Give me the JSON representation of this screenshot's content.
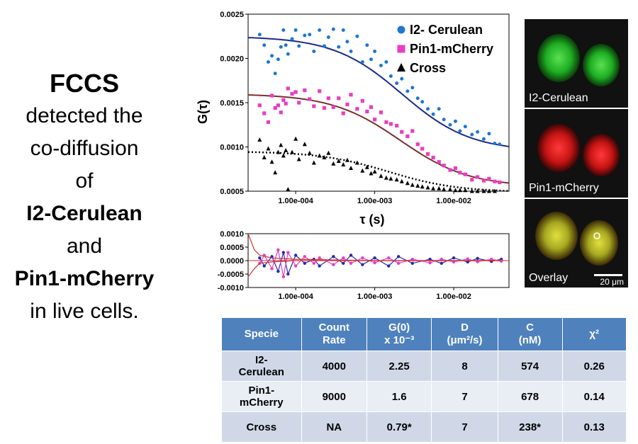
{
  "left_text": {
    "title": "FCCS",
    "line1": "detected the",
    "line2": "co-diffusion",
    "line3": "of",
    "protein1": "I2-Cerulean",
    "line4": "and",
    "protein2": "Pin1-mCherry",
    "line5": "in live cells."
  },
  "chart_data": [
    {
      "type": "scatter",
      "title": "",
      "xlabel": "τ (s)",
      "ylabel": "G(τ)",
      "xscale": "log",
      "xlim": [
        2.5e-05,
        0.05
      ],
      "ylim": [
        0.0005,
        0.0025
      ],
      "yticks": [
        "0.0005",
        "0.0010",
        "0.0015",
        "0.0020",
        "0.0025"
      ],
      "xticks": [
        "1.00e-004",
        "1.00e-003",
        "1.00e-002"
      ],
      "legend": "top-right",
      "series": [
        {
          "name": "I2- Cerulean",
          "marker": "circle",
          "color": "#1f77d0",
          "points": [
            [
              3.5e-05,
              0.00227
            ],
            [
              4e-05,
              0.00215
            ],
            [
              4.5e-05,
              0.00196
            ],
            [
              5e-05,
              0.00203
            ],
            [
              5.5e-05,
              0.00183
            ],
            [
              6e-05,
              0.00199
            ],
            [
              6.5e-05,
              0.00213
            ],
            [
              7e-05,
              0.00232
            ],
            [
              7.5e-05,
              0.00215
            ],
            [
              8e-05,
              0.00205
            ],
            [
              9e-05,
              0.00222
            ],
            [
              0.0001,
              0.00232
            ],
            [
              0.00011,
              0.00214
            ],
            [
              0.00013,
              0.00226
            ],
            [
              0.00015,
              0.00227
            ],
            [
              0.00017,
              0.00208
            ],
            [
              0.0002,
              0.00232
            ],
            [
              0.00023,
              0.00214
            ],
            [
              0.00026,
              0.00224
            ],
            [
              0.0003,
              0.00233
            ],
            [
              0.00035,
              0.00213
            ],
            [
              0.0004,
              0.00232
            ],
            [
              0.00045,
              0.00219
            ],
            [
              0.0005,
              0.00208
            ],
            [
              0.0006,
              0.00225
            ],
            [
              0.0007,
              0.00196
            ],
            [
              0.0008,
              0.00215
            ],
            [
              0.0009,
              0.00199
            ],
            [
              0.001,
              0.00208
            ],
            [
              0.0012,
              0.00192
            ],
            [
              0.0014,
              0.00196
            ],
            [
              0.0016,
              0.0018
            ],
            [
              0.0019,
              0.00172
            ],
            [
              0.0022,
              0.00177
            ],
            [
              0.0026,
              0.00163
            ],
            [
              0.003,
              0.00167
            ],
            [
              0.0035,
              0.00155
            ],
            [
              0.004,
              0.00151
            ],
            [
              0.0047,
              0.00143
            ],
            [
              0.0055,
              0.00137
            ],
            [
              0.0065,
              0.00143
            ],
            [
              0.0075,
              0.00131
            ],
            [
              0.009,
              0.00125
            ],
            [
              0.0105,
              0.00129
            ],
            [
              0.012,
              0.00118
            ],
            [
              0.014,
              0.00123
            ],
            [
              0.017,
              0.00114
            ],
            [
              0.02,
              0.00117
            ],
            [
              0.024,
              0.00109
            ],
            [
              0.028,
              0.00115
            ],
            [
              0.033,
              0.00104
            ],
            [
              0.038,
              0.00103
            ]
          ]
        },
        {
          "name": "Pin1-mCherry",
          "marker": "square",
          "color": "#e83ec0",
          "points": [
            [
              3.5e-05,
              0.00147
            ],
            [
              4e-05,
              0.00138
            ],
            [
              4.5e-05,
              0.00128
            ],
            [
              5e-05,
              0.00158
            ],
            [
              5.5e-05,
              0.00144
            ],
            [
              6e-05,
              0.00147
            ],
            [
              6.5e-05,
              0.00139
            ],
            [
              7e-05,
              0.00153
            ],
            [
              7.5e-05,
              0.00149
            ],
            [
              8e-05,
              0.00166
            ],
            [
              9e-05,
              0.0016
            ],
            [
              0.0001,
              0.00162
            ],
            [
              0.00011,
              0.0015
            ],
            [
              0.00013,
              0.00164
            ],
            [
              0.00015,
              0.00154
            ],
            [
              0.00017,
              0.00146
            ],
            [
              0.0002,
              0.00163
            ],
            [
              0.00023,
              0.00144
            ],
            [
              0.00026,
              0.00155
            ],
            [
              0.0003,
              0.00145
            ],
            [
              0.00035,
              0.00155
            ],
            [
              0.0004,
              0.00138
            ],
            [
              0.00045,
              0.00148
            ],
            [
              0.0005,
              0.00159
            ],
            [
              0.0006,
              0.00143
            ],
            [
              0.0007,
              0.00152
            ],
            [
              0.0008,
              0.0014
            ],
            [
              0.0009,
              0.00145
            ],
            [
              0.001,
              0.00131
            ],
            [
              0.0012,
              0.00139
            ],
            [
              0.0014,
              0.00128
            ],
            [
              0.0016,
              0.00126
            ],
            [
              0.0019,
              0.00124
            ],
            [
              0.0022,
              0.00117
            ],
            [
              0.0026,
              0.00112
            ],
            [
              0.003,
              0.00118
            ],
            [
              0.0035,
              0.00103
            ],
            [
              0.004,
              0.00098
            ],
            [
              0.0047,
              0.00092
            ],
            [
              0.0055,
              0.00088
            ],
            [
              0.0065,
              0.00083
            ],
            [
              0.0075,
              0.00079
            ],
            [
              0.009,
              0.00074
            ],
            [
              0.0105,
              0.00076
            ],
            [
              0.012,
              0.00071
            ],
            [
              0.014,
              0.00069
            ],
            [
              0.017,
              0.00063
            ],
            [
              0.02,
              0.00066
            ],
            [
              0.024,
              0.00062
            ],
            [
              0.028,
              0.00064
            ],
            [
              0.033,
              0.00061
            ],
            [
              0.038,
              0.0006
            ]
          ]
        },
        {
          "name": "Cross",
          "marker": "triangle",
          "color": "#000000",
          "points": [
            [
              3.5e-05,
              0.00108
            ],
            [
              4e-05,
              0.00088
            ],
            [
              4.5e-05,
              0.00098
            ],
            [
              5e-05,
              0.00083
            ],
            [
              5.5e-05,
              0.00071
            ],
            [
              6e-05,
              0.00094
            ],
            [
              6.5e-05,
              0.00102
            ],
            [
              7e-05,
              0.0009
            ],
            [
              7.5e-05,
              0.00096
            ],
            [
              8e-05,
              0.00052
            ],
            [
              9e-05,
              0.00094
            ],
            [
              0.0001,
              0.00109
            ],
            [
              0.00011,
              0.00086
            ],
            [
              0.00013,
              0.00103
            ],
            [
              0.00015,
              0.00093
            ],
            [
              0.00017,
              0.00082
            ],
            [
              0.0002,
              0.0009
            ],
            [
              0.00023,
              0.00088
            ],
            [
              0.00026,
              0.00093
            ],
            [
              0.0003,
              0.00081
            ],
            [
              0.00035,
              0.00084
            ],
            [
              0.0004,
              0.0008
            ],
            [
              0.00045,
              0.00085
            ],
            [
              0.0005,
              0.00076
            ],
            [
              0.0006,
              0.00082
            ],
            [
              0.0007,
              0.00073
            ],
            [
              0.0008,
              0.00077
            ],
            [
              0.0009,
              0.0007
            ],
            [
              0.001,
              0.00072
            ],
            [
              0.0012,
              0.00067
            ],
            [
              0.0014,
              0.00065
            ],
            [
              0.0016,
              0.00064
            ],
            [
              0.0019,
              0.00063
            ],
            [
              0.0022,
              0.00061
            ],
            [
              0.0026,
              0.00059
            ],
            [
              0.003,
              0.00057
            ],
            [
              0.0035,
              0.00056
            ],
            [
              0.004,
              0.00055
            ],
            [
              0.0047,
              0.00054
            ],
            [
              0.0055,
              0.00053
            ],
            [
              0.0065,
              0.00053
            ],
            [
              0.0075,
              0.00052
            ],
            [
              0.009,
              0.00052
            ],
            [
              0.0105,
              0.00051
            ],
            [
              0.012,
              0.00051
            ],
            [
              0.014,
              0.00051
            ],
            [
              0.017,
              0.0005
            ],
            [
              0.02,
              0.0005
            ],
            [
              0.024,
              0.0005
            ],
            [
              0.028,
              0.0005
            ],
            [
              0.033,
              0.0005
            ]
          ]
        }
      ],
      "fits": [
        {
          "for": "I2- Cerulean",
          "color": "#1a2a8a",
          "style": "solid",
          "g0": 0.00225,
          "ginf": 0.00095,
          "tau_d": 0.0022
        },
        {
          "for": "Pin1-mCherry",
          "color": "#7a3030",
          "style": "solid",
          "g0": 0.0016,
          "ginf": 0.00055,
          "tau_d": 0.0021
        },
        {
          "for": "Cross",
          "color": "#000000",
          "style": "dotted",
          "g0": 0.00095,
          "ginf": 0.00049,
          "tau_d": 0.0015
        }
      ]
    },
    {
      "type": "line",
      "title": "",
      "xscale": "log",
      "xlim": [
        2.5e-05,
        0.05
      ],
      "ylim": [
        -0.001,
        0.001
      ],
      "yticks": [
        "0.0010",
        "0.0005",
        "0.0000",
        "-0.0005",
        "-0.0010"
      ],
      "xticks": [
        "1.00e-004",
        "1.00e-003",
        "1.00e-002"
      ],
      "series": [
        {
          "name": "I2- Cerulean residuals",
          "color": "#2a2aa8",
          "points": [
            [
              3.5e-05,
              0.0001
            ],
            [
              4e-05,
              -0.0002
            ],
            [
              5e-05,
              0.00015
            ],
            [
              6e-05,
              -0.0004
            ],
            [
              7e-05,
              0.0003
            ],
            [
              8e-05,
              -0.0005
            ],
            [
              0.0001,
              0.0002
            ],
            [
              0.00013,
              -0.0001
            ],
            [
              0.00017,
              5e-05
            ],
            [
              0.0002,
              -0.0002
            ],
            [
              0.0003,
              0.00015
            ],
            [
              0.0004,
              -0.0001
            ],
            [
              0.0005,
              0.0002
            ],
            [
              0.0007,
              -0.00015
            ],
            [
              0.001,
              0.0001
            ],
            [
              0.0015,
              -0.0002
            ],
            [
              0.002,
              0.00015
            ],
            [
              0.003,
              -0.0001
            ],
            [
              0.005,
              5e-05
            ],
            [
              0.007,
              -0.0001
            ],
            [
              0.01,
              0.0001
            ],
            [
              0.015,
              -5e-05
            ],
            [
              0.02,
              8e-05
            ],
            [
              0.03,
              -3e-05
            ],
            [
              0.04,
              5e-05
            ]
          ]
        },
        {
          "name": "Pin1-mCherry residuals",
          "color": "#e83ec0",
          "points": [
            [
              3.5e-05,
              -0.0001
            ],
            [
              4e-05,
              0.0002
            ],
            [
              5e-05,
              -0.0003
            ],
            [
              6e-05,
              0.0004
            ],
            [
              7e-05,
              -0.0006
            ],
            [
              8e-05,
              0.0003
            ],
            [
              0.0001,
              -0.0002
            ],
            [
              0.00013,
              0.00015
            ],
            [
              0.00017,
              -0.0001
            ],
            [
              0.0002,
              0.0001
            ],
            [
              0.0003,
              -0.00015
            ],
            [
              0.0004,
              0.0001
            ],
            [
              0.0005,
              -0.0001
            ],
            [
              0.0007,
              0.0001
            ],
            [
              0.001,
              -8e-05
            ],
            [
              0.0015,
              0.0001
            ],
            [
              0.002,
              -0.0001
            ],
            [
              0.003,
              5e-05
            ],
            [
              0.005,
              -8e-05
            ],
            [
              0.007,
              5e-05
            ],
            [
              0.01,
              -5e-05
            ],
            [
              0.015,
              6e-05
            ],
            [
              0.02,
              -4e-05
            ],
            [
              0.03,
              5e-05
            ],
            [
              0.04,
              -2e-05
            ]
          ]
        },
        {
          "name": "Cross residuals",
          "color": "#d03030",
          "points": [
            [
              2.5e-05,
              0.001
            ],
            [
              3e-05,
              0.0004
            ],
            [
              3.5e-05,
              0.0002
            ],
            [
              5e-05,
              0.0001
            ],
            [
              0.0001,
              5e-05
            ],
            [
              0.001,
              0.0
            ],
            [
              0.01,
              0.0
            ],
            [
              0.04,
              0.0
            ]
          ]
        },
        {
          "name": "Cross residuals 2",
          "color": "#d03030",
          "points": [
            [
              2.5e-05,
              -0.0006
            ],
            [
              3e-05,
              -0.0003
            ],
            [
              3.5e-05,
              -0.0001
            ],
            [
              5e-05,
              -5e-05
            ],
            [
              0.0001,
              0.0
            ],
            [
              0.001,
              0.0
            ],
            [
              0.01,
              0.0
            ],
            [
              0.04,
              0.0
            ]
          ]
        }
      ]
    }
  ],
  "micrographs": [
    {
      "label": "I2-Cerulean",
      "color": "#22c22a"
    },
    {
      "label": "Pin1-mCherry",
      "color": "#d01818"
    },
    {
      "label": "Overlay",
      "color": "#a4b020",
      "scale_label": "20 μm"
    }
  ],
  "table": {
    "headers": [
      {
        "line1": "Specie",
        "line2": ""
      },
      {
        "line1": "Count",
        "line2": "Rate"
      },
      {
        "line1": "G(0)",
        "line2": "x 10⁻³"
      },
      {
        "line1": "D",
        "line2": "(μm²/s)"
      },
      {
        "line1": "C",
        "line2": "(nM)"
      },
      {
        "line1": "χ²",
        "line2": ""
      }
    ],
    "rows": [
      {
        "specie_line1": "I2-",
        "specie_line2": "Cerulean",
        "count": "4000",
        "g0": "2.25",
        "d": "8",
        "c": "574",
        "chi": "0.26"
      },
      {
        "specie_line1": "Pin1-",
        "specie_line2": "mCherry",
        "count": "9000",
        "g0": "1.6",
        "d": "7",
        "c": "678",
        "chi": "0.14"
      },
      {
        "specie_line1": "Cross",
        "specie_line2": "",
        "count": "NA",
        "g0": "0.79*",
        "d": "7",
        "c": "238*",
        "chi": "0.13"
      }
    ]
  }
}
